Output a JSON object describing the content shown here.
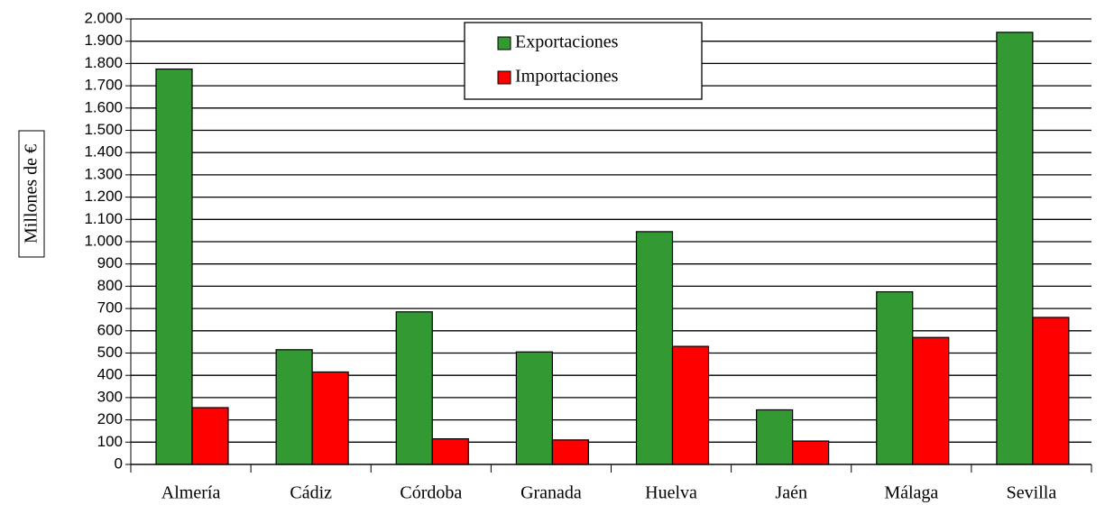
{
  "chart_data": {
    "type": "bar",
    "y_label": "Millones de €",
    "categories": [
      "Almería",
      "Cádiz",
      "Córdoba",
      "Granada",
      "Huelva",
      "Jaén",
      "Málaga",
      "Sevilla"
    ],
    "series": [
      {
        "name": "Exportaciones",
        "color": "#339933",
        "values": [
          1775,
          515,
          685,
          505,
          1045,
          245,
          775,
          1940
        ]
      },
      {
        "name": "Importaciones",
        "color": "#ff0000",
        "values": [
          255,
          415,
          115,
          110,
          530,
          105,
          570,
          660
        ]
      }
    ],
    "ylim": [
      0,
      2000
    ],
    "yticks": [
      0,
      100,
      200,
      300,
      400,
      500,
      600,
      700,
      800,
      900,
      {
        "value": 1000,
        "label": "1.000"
      },
      {
        "value": 1100,
        "label": "1.100"
      },
      {
        "value": 1200,
        "label": "1.200"
      },
      {
        "value": 1300,
        "label": "1.300"
      },
      {
        "value": 1400,
        "label": "1.400"
      },
      {
        "value": 1500,
        "label": "1.500"
      },
      {
        "value": 1600,
        "label": "1.600"
      },
      {
        "value": 1700,
        "label": "1.700"
      },
      {
        "value": 1800,
        "label": "1.800"
      },
      {
        "value": 1900,
        "label": "1.900"
      },
      {
        "value": 2000,
        "label": "2.000"
      }
    ],
    "grid": true,
    "legend": "top"
  }
}
